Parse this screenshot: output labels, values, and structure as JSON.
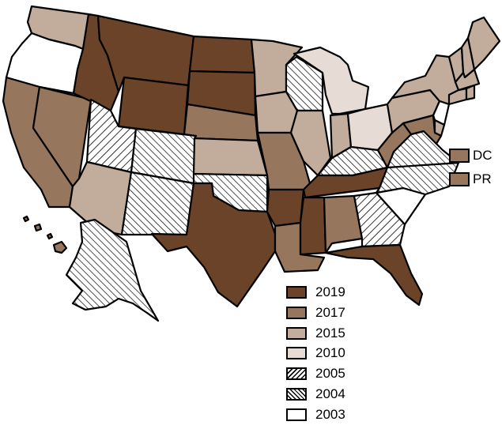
{
  "colors": {
    "y2019": "#6b4328",
    "y2017": "#97765e",
    "y2015": "#c2ad9d",
    "y2010": "#e6dcd5",
    "y2005": "hatch-forward",
    "y2004": "hatch-back",
    "y2003": "#ffffff"
  },
  "legend": [
    {
      "key": "y2019",
      "label": "2019"
    },
    {
      "key": "y2017",
      "label": "2017"
    },
    {
      "key": "y2015",
      "label": "2015"
    },
    {
      "key": "y2010",
      "label": "2010"
    },
    {
      "key": "y2005",
      "label": "2005"
    },
    {
      "key": "y2004",
      "label": "2004"
    },
    {
      "key": "y2003",
      "label": "2003"
    }
  ],
  "insets": [
    {
      "key": "y2017",
      "label": "DC"
    },
    {
      "key": "y2017",
      "label": "PR"
    }
  ],
  "states": {
    "WA": "y2015",
    "OR": "y2003",
    "CA": "y2017",
    "NV": "y2017",
    "ID": "y2019",
    "MT": "y2019",
    "WY": "y2019",
    "UT": "y2005",
    "CO": "y2004",
    "AZ": "y2015",
    "NM": "y2004",
    "ND": "y2019",
    "SD": "y2019",
    "NE": "y2017",
    "KS": "y2015",
    "OK": "y2004",
    "TX": "y2019",
    "MN": "y2015",
    "IA": "y2015",
    "MO": "y2017",
    "AR": "y2019",
    "LA": "y2017",
    "WI": "y2004",
    "IL": "y2015",
    "MI": "y2010",
    "IN": "y2015",
    "OH": "y2010",
    "KY": "y2004",
    "TN": "y2019",
    "MS": "y2019",
    "AL": "y2017",
    "GA": "y2005",
    "FL": "y2019",
    "SC": "y2003",
    "NC": "y2004",
    "VA": "y2004",
    "WV": "y2017",
    "PA": "y2015",
    "NY": "y2015",
    "VT": "y2015",
    "NH": "y2015",
    "ME": "y2015",
    "MA": "y2015",
    "RI": "y2015",
    "CT": "y2015",
    "NJ": "y2003",
    "DE": "y2015",
    "MD": "y2017",
    "AK": "y2004",
    "HI": "y2017"
  }
}
